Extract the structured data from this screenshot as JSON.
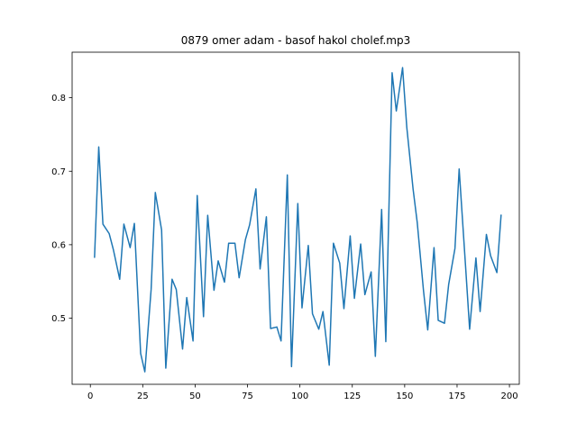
{
  "chart_data": {
    "type": "line",
    "title": "0879 omer adam - basof hakol cholef.mp3",
    "xlabel": "",
    "ylabel": "",
    "xlim": [
      -8.7,
      204.7
    ],
    "ylim": [
      0.41,
      0.862
    ],
    "xticks": [
      0,
      25,
      50,
      75,
      100,
      125,
      150,
      175,
      200
    ],
    "yticks": [
      0.5,
      0.6,
      0.7,
      0.8
    ],
    "ytick_labels": [
      "0.5",
      "0.6",
      "0.7",
      "0.8"
    ],
    "grid": false,
    "legend": "none",
    "series": [
      {
        "color": "#1f77b4",
        "x": [
          2,
          4,
          6,
          9,
          11,
          14,
          16,
          19,
          21,
          24,
          26,
          29,
          31,
          34,
          36,
          39,
          41,
          44,
          46,
          49,
          51,
          54,
          56,
          59,
          61,
          64,
          66,
          69,
          71,
          74,
          76,
          79,
          81,
          84,
          86,
          89,
          91,
          94,
          96,
          99,
          101,
          104,
          106,
          109,
          111,
          114,
          116,
          119,
          121,
          124,
          126,
          129,
          131,
          134,
          136,
          139,
          141,
          144,
          146,
          149,
          151,
          154,
          156,
          159,
          161,
          164,
          166,
          169,
          171,
          174,
          176,
          179,
          181,
          184,
          186,
          189,
          191,
          194,
          196
        ],
        "y": [
          0.583,
          0.733,
          0.628,
          0.615,
          0.593,
          0.553,
          0.628,
          0.596,
          0.629,
          0.452,
          0.427,
          0.539,
          0.671,
          0.62,
          0.432,
          0.553,
          0.539,
          0.458,
          0.528,
          0.469,
          0.667,
          0.502,
          0.64,
          0.538,
          0.578,
          0.549,
          0.602,
          0.602,
          0.555,
          0.607,
          0.627,
          0.676,
          0.567,
          0.638,
          0.486,
          0.488,
          0.469,
          0.695,
          0.434,
          0.656,
          0.514,
          0.599,
          0.506,
          0.485,
          0.509,
          0.436,
          0.602,
          0.575,
          0.513,
          0.612,
          0.527,
          0.601,
          0.532,
          0.563,
          0.448,
          0.648,
          0.468,
          0.834,
          0.782,
          0.841,
          0.76,
          0.676,
          0.63,
          0.537,
          0.484,
          0.596,
          0.497,
          0.493,
          0.546,
          0.595,
          0.703,
          0.573,
          0.485,
          0.582,
          0.509,
          0.614,
          0.585,
          0.562,
          0.64
        ]
      }
    ]
  }
}
